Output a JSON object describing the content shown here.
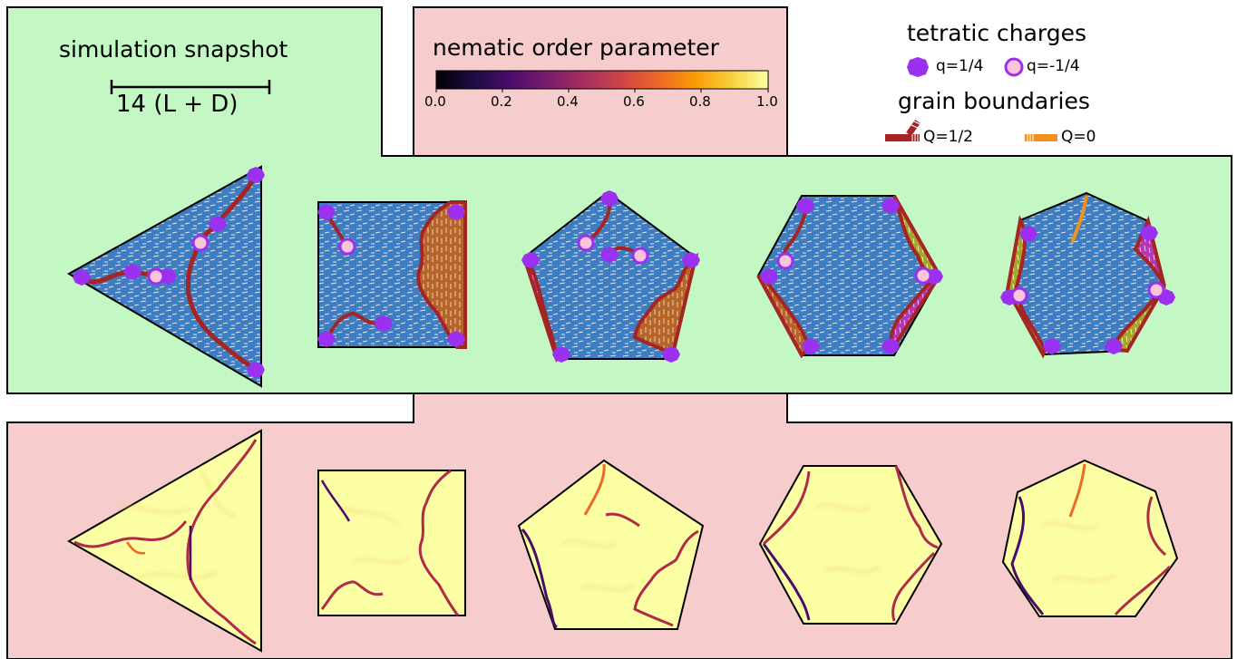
{
  "snapshot_title": "simulation snapshot",
  "scale_label": "14 (L + D)",
  "colorbar": {
    "title": "nematic order parameter",
    "ticks": [
      "0.0",
      "0.2",
      "0.4",
      "0.6",
      "0.8",
      "1.0"
    ],
    "stops": [
      "#000004",
      "#1b0c41",
      "#4a0c6b",
      "#781c6d",
      "#a52c60",
      "#cf4446",
      "#ed6925",
      "#fb9b06",
      "#f7d13d",
      "#fcffa4"
    ]
  },
  "legend": {
    "charges_title": "tetratic charges",
    "charge_pos": "q=1/4",
    "charge_neg": "q=-1/4",
    "gb_title": "grain boundaries",
    "gb_half": "Q=1/2",
    "gb_zero": "Q=0"
  },
  "colors": {
    "green_panel": "#c3f7c3",
    "pink_panel": "#f6cccc",
    "domain_blue": "#3c7dc4",
    "domain_brown": "#b5652a",
    "domain_magenta": "#b437b4",
    "domain_olive": "#a5a52a",
    "charge_purple": "#9b30f0",
    "charge_neg_fill": "#f8c6d8",
    "gb_dark_red": "#a52424",
    "gb_orange": "#f0901e",
    "order_yellow": "#fcfea4",
    "order_line": "#b02a4a"
  },
  "shapes": [
    "triangle",
    "square",
    "pentagon",
    "hexagon",
    "heptagon"
  ]
}
